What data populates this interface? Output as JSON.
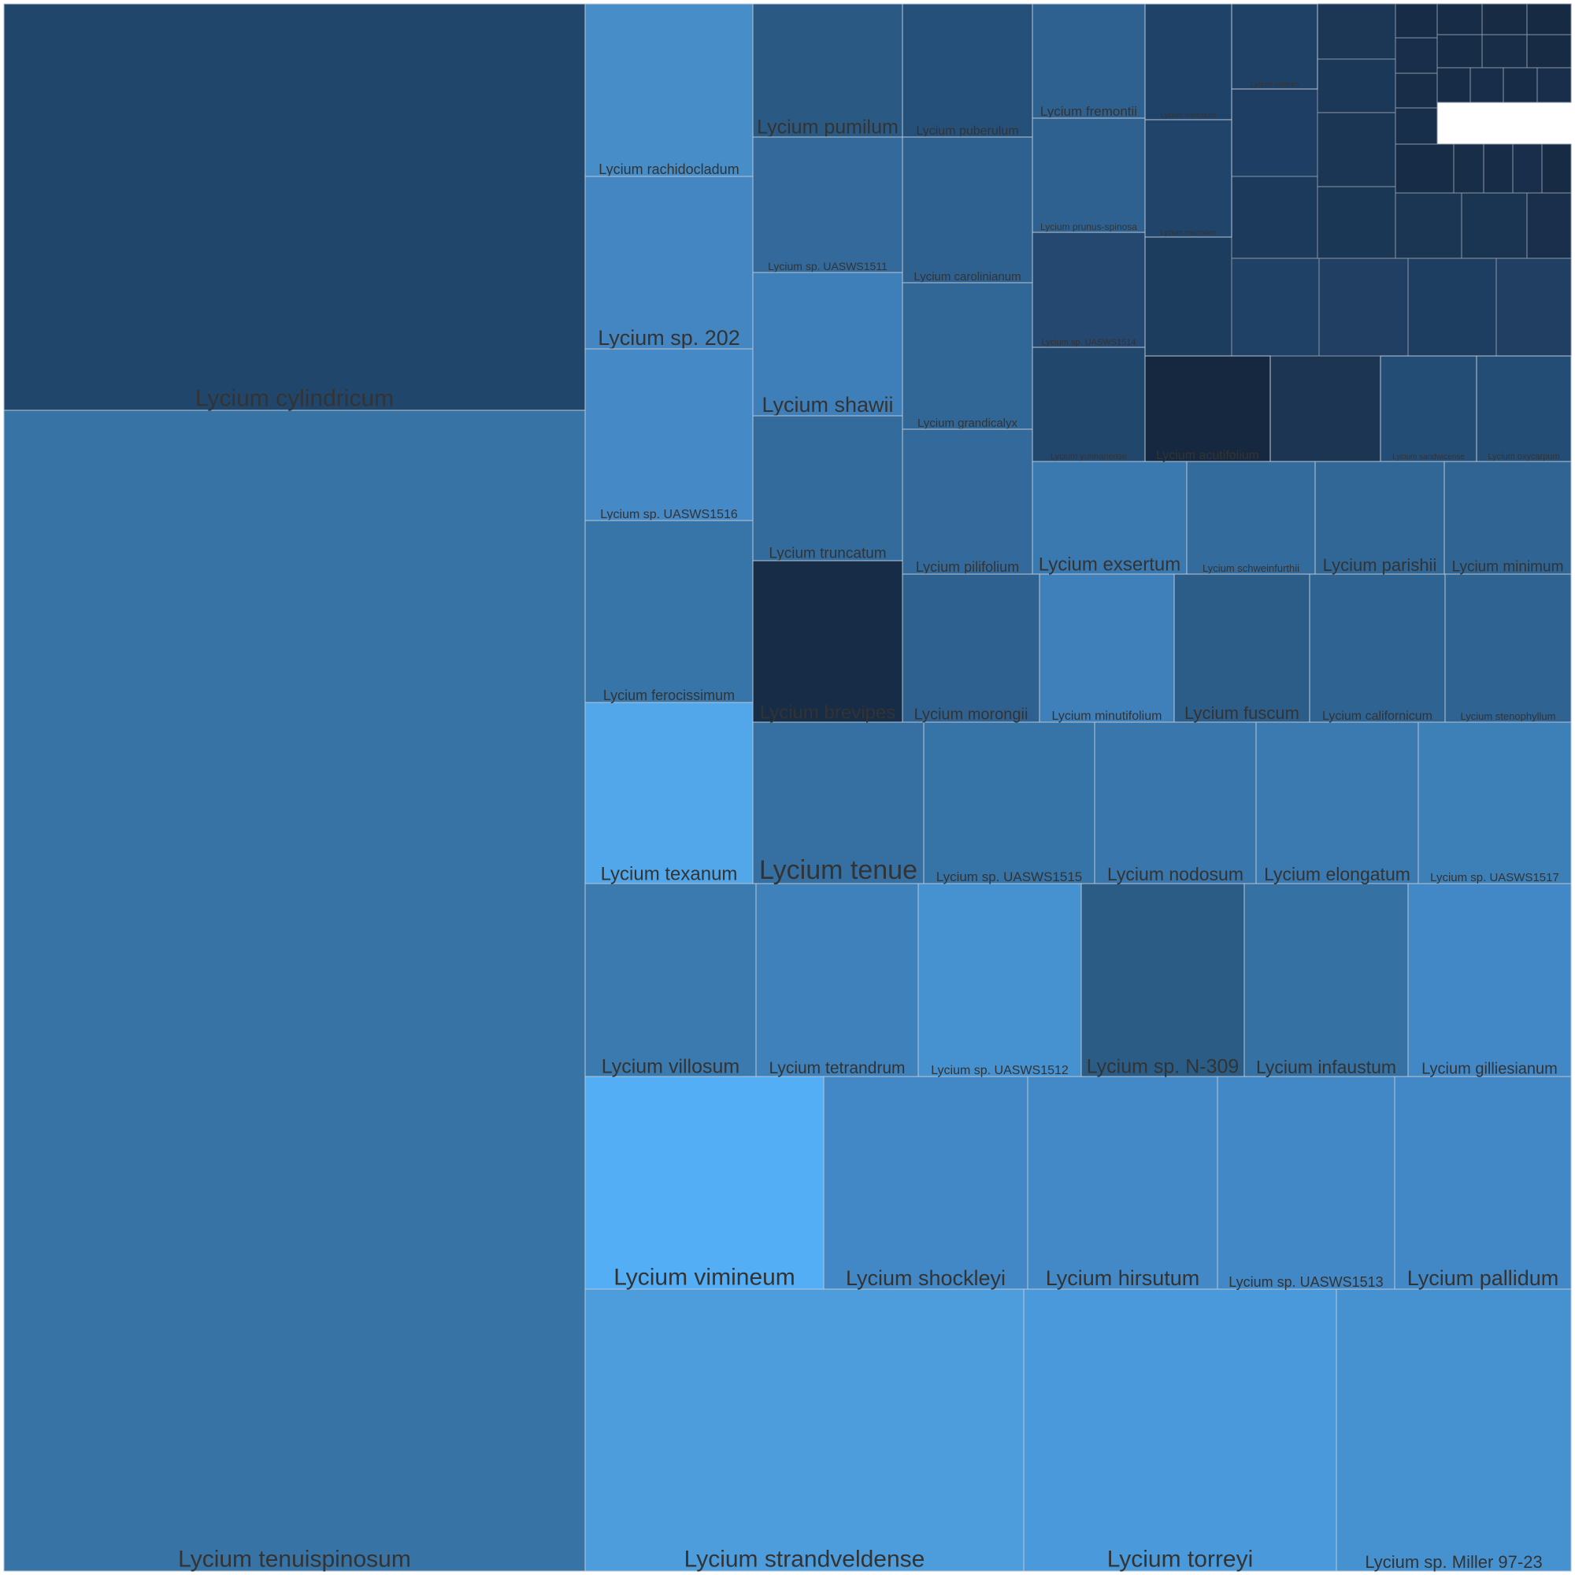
{
  "chart_data": {
    "type": "treemap",
    "tiles": [
      {
        "label": "Lycium tenuispinosum",
        "color": "#3873a5"
      },
      {
        "label": "Lycium cylindricum",
        "color": "#21466b"
      },
      {
        "label": "Lycium strandveldense",
        "color": "#4d9ddd"
      },
      {
        "label": "Lycium torreyi",
        "color": "#4a9adb"
      },
      {
        "label": "Lycium sp. Miller 97-23",
        "color": "#4692d1"
      },
      {
        "label": "Lycium vimineum",
        "color": "#54aef5"
      },
      {
        "label": "Lycium shockleyi",
        "color": "#4388c6"
      },
      {
        "label": "Lycium hirsutum",
        "color": "#4489c7"
      },
      {
        "label": "Lycium sp. UASWS1513",
        "color": "#4388c6"
      },
      {
        "label": "Lycium pallidum",
        "color": "#4388c6"
      },
      {
        "label": "Lycium villosum",
        "color": "#3b7aaf"
      },
      {
        "label": "Lycium tetrandrum",
        "color": "#3f81bb"
      },
      {
        "label": "Lycium sp. UASWS1512",
        "color": "#4692d1"
      },
      {
        "label": "Lycium sp. N-309",
        "color": "#2b5c85"
      },
      {
        "label": "Lycium infaustum",
        "color": "#3571a3"
      },
      {
        "label": "Lycium gilliesianum",
        "color": "#4388c6"
      },
      {
        "label": "Lycium texanum",
        "color": "#51a7e9"
      },
      {
        "label": "Lycium tenue",
        "color": "#3670a2"
      },
      {
        "label": "Lycium sp. UASWS1515",
        "color": "#3673a6"
      },
      {
        "label": "Lycium nodosum",
        "color": "#3876ac"
      },
      {
        "label": "Lycium elongatum",
        "color": "#3a7ab0"
      },
      {
        "label": "Lycium sp. UASWS1517",
        "color": "#3d7fb7"
      },
      {
        "label": "Lycium rachidocladum",
        "color": "#478ec9"
      },
      {
        "label": "Lycium sp. 202",
        "color": "#4386c2"
      },
      {
        "label": "Lycium sp. UASWS1516",
        "color": "#4589c6"
      },
      {
        "label": "Lycium ferocissimum",
        "color": "#3775a8"
      },
      {
        "label": "Lycium pumilum",
        "color": "#2a5a84"
      },
      {
        "label": "Lycium sp. UASWS1511",
        "color": "#336a9b"
      },
      {
        "label": "Lycium shawii",
        "color": "#3e7fb9"
      },
      {
        "label": "Lycium truncatum",
        "color": "#336b9c"
      },
      {
        "label": "Lycium brevipes",
        "color": "#172c47"
      },
      {
        "label": "Lycium puberulum",
        "color": "#255079"
      },
      {
        "label": "Lycium carolinianum",
        "color": "#2e6190"
      },
      {
        "label": "Lycium grandicalyx",
        "color": "#316796"
      },
      {
        "label": "Lycium pilifolium",
        "color": "#336a9b"
      },
      {
        "label": "Lycium morongii",
        "color": "#2e6190"
      },
      {
        "label": "Lycium minutifolium",
        "color": "#3f80ba"
      },
      {
        "label": "Lycium fuscum",
        "color": "#2c5d89"
      },
      {
        "label": "Lycium californicum",
        "color": "#2f6392"
      },
      {
        "label": "Lycium stenophyllum",
        "color": "#2f6392"
      },
      {
        "label": "Lycium exsertum",
        "color": "#3a79b0"
      },
      {
        "label": "Lycium schweinfurthii",
        "color": "#336b9c"
      },
      {
        "label": "Lycium parishii",
        "color": "#316797"
      },
      {
        "label": "Lycium minimum",
        "color": "#2f6493"
      },
      {
        "label": "Lycium fremontii",
        "color": "#2e6190"
      },
      {
        "label": "Lycium prunus-spinosa",
        "color": "#2e6190"
      },
      {
        "label": "Lycium sp. UASWS1514",
        "color": "#24486f"
      },
      {
        "label": "Lycium yunnanense",
        "color": "#22476d"
      },
      {
        "label": "Lycium intricatum",
        "color": "#1f4268"
      },
      {
        "label": "Lycium macrodon",
        "color": "#20446a"
      },
      {
        "label": "Lycium acutifolium",
        "color": "#16283f"
      },
      {
        "label": "Lycium ciliatum",
        "color": "#1f4166"
      },
      {
        "label": "Lycium sandwicense",
        "color": "#244d75"
      },
      {
        "label": "Lycium oxycarpum",
        "color": "#244d75"
      }
    ],
    "unlabeled_tiles": 37
  }
}
